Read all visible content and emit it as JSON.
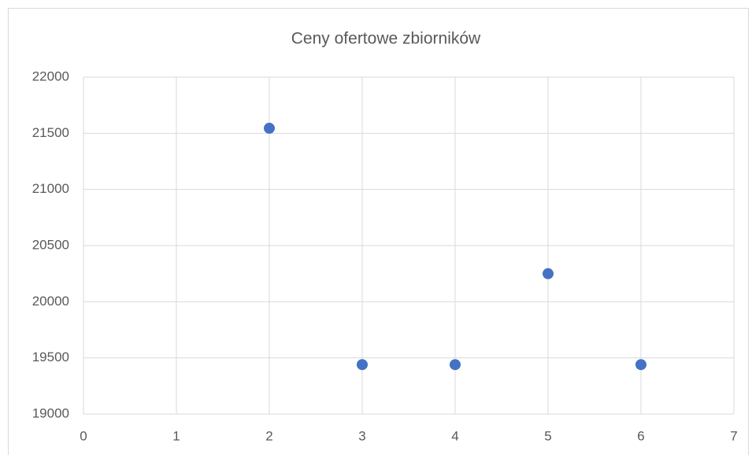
{
  "chart_data": {
    "type": "scatter",
    "title": "Ceny ofertowe zbiorników",
    "series": [
      {
        "color": "#4472c4",
        "x": [
          2,
          3,
          4,
          5,
          6
        ],
        "values": [
          21545,
          19440,
          19440,
          20250,
          19440
        ]
      }
    ],
    "xlim": [
      0,
      7
    ],
    "xticks": [
      0,
      1,
      2,
      3,
      4,
      5,
      6,
      7
    ],
    "ylim": [
      19000,
      22000
    ],
    "yticks": [
      19000,
      19500,
      20000,
      20500,
      21000,
      21500,
      22000
    ],
    "grid": true
  }
}
